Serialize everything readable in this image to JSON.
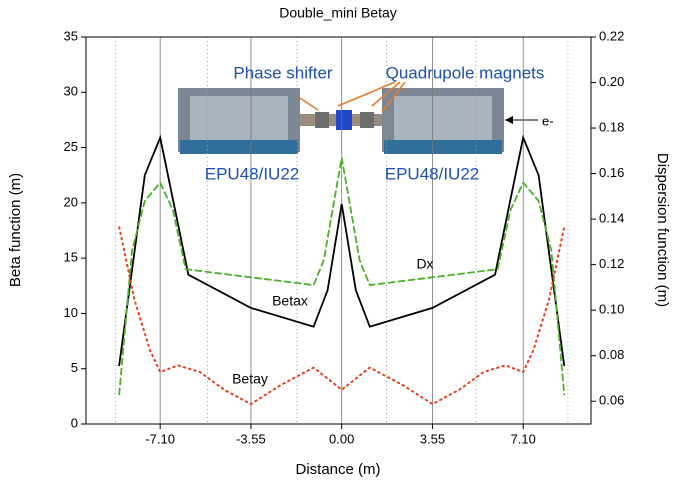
{
  "chart_data": {
    "type": "line",
    "title": "Double_mini Betay",
    "x_label": "Distance (m)",
    "y_label": "Beta function (m)",
    "y2_label": "Dispersion function (m)",
    "xlim": [
      -10,
      9.75
    ],
    "xticks": [
      {
        "value": -7.1,
        "label": "-7.10"
      },
      {
        "value": -3.55,
        "label": "-3.55"
      },
      {
        "value": 0,
        "label": "0.00"
      },
      {
        "value": 3.55,
        "label": "3.55"
      },
      {
        "value": 7.1,
        "label": "7.10"
      }
    ],
    "ylim": [
      0,
      35
    ],
    "yticks": [
      0,
      5,
      10,
      15,
      20,
      25,
      30,
      35
    ],
    "y2lim": [
      0.05,
      0.22
    ],
    "y2ticks": [
      0.06,
      0.08,
      {
        "value": 0.1,
        "label": "0.10"
      },
      0.12,
      0.14,
      0.16,
      0.18,
      {
        "value": 0.2,
        "label": "0.20"
      },
      0.22
    ],
    "x_grid": true,
    "reference_lines_x": [
      -8.85,
      -5.25,
      -1.75,
      1.75,
      5.25,
      8.85
    ],
    "annotations": [
      "Phase shifter",
      "Quadrupole magnets",
      "EPU48/IU22",
      "EPU48/IU22",
      "e-"
    ],
    "series": [
      {
        "name": "Betax",
        "color": "#000000",
        "style": "solid",
        "x": [
          -8.7,
          -7.7,
          -7.1,
          -6.1,
          -6.0,
          -3.55,
          -1.1,
          -0.55,
          0,
          0.55,
          1.1,
          3.55,
          6.0,
          6.1,
          7.1,
          7.7,
          8.7
        ],
        "values": [
          5.3,
          22.5,
          25.9,
          14.7,
          13.5,
          10.5,
          8.8,
          12.1,
          19.9,
          12.1,
          8.8,
          10.5,
          13.5,
          14.7,
          25.9,
          22.5,
          5.3
        ]
      },
      {
        "name": "Dx",
        "color": "#4daf2a",
        "style": "dashed",
        "axis": "y2",
        "x": [
          -8.7,
          -8.2,
          -7.7,
          -7.1,
          -6.6,
          -6.1,
          -1.1,
          -0.7,
          0,
          0.7,
          1.1,
          6.1,
          6.6,
          7.1,
          7.7,
          8.2,
          8.7
        ],
        "values": [
          0.063,
          0.126,
          0.148,
          0.156,
          0.144,
          0.118,
          0.111,
          0.122,
          0.167,
          0.122,
          0.111,
          0.118,
          0.144,
          0.156,
          0.148,
          0.126,
          0.063
        ]
      },
      {
        "name": "Betay",
        "color": "#e8401c",
        "style": "dotted",
        "x": [
          -8.7,
          -8.1,
          -7.5,
          -7.1,
          -6.4,
          -5.55,
          -4.6,
          -3.55,
          -2.4,
          -1.1,
          0,
          1.1,
          2.4,
          3.55,
          4.6,
          5.55,
          6.4,
          7.1,
          7.5,
          8.1,
          8.7
        ],
        "values": [
          17.8,
          11.2,
          6.7,
          4.7,
          5.3,
          4.7,
          3.1,
          1.8,
          3.5,
          5.1,
          3.1,
          5.1,
          3.5,
          1.8,
          3.1,
          4.7,
          5.3,
          4.7,
          6.7,
          11.2,
          17.8
        ]
      }
    ]
  }
}
